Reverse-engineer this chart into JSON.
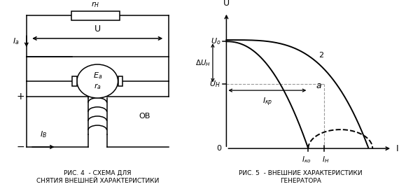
{
  "fig_width": 5.8,
  "fig_height": 2.8,
  "dpi": 100,
  "background_color": "#ffffff",
  "left_caption_line1": "РИС. 4  - СХЕМА ДЛЯ",
  "left_caption_line2": "СНЯТИЯ ВНЕШНЕЙ ХАРАКТЕРИСТИКИ",
  "right_caption_line1": "РИС. 5  - ВНЕШНИЕ ХАРАКТЕРИСТИКИ",
  "right_caption_line2": "ГЕНЕРАТОРА",
  "color": "#000000",
  "lw": 1.1
}
